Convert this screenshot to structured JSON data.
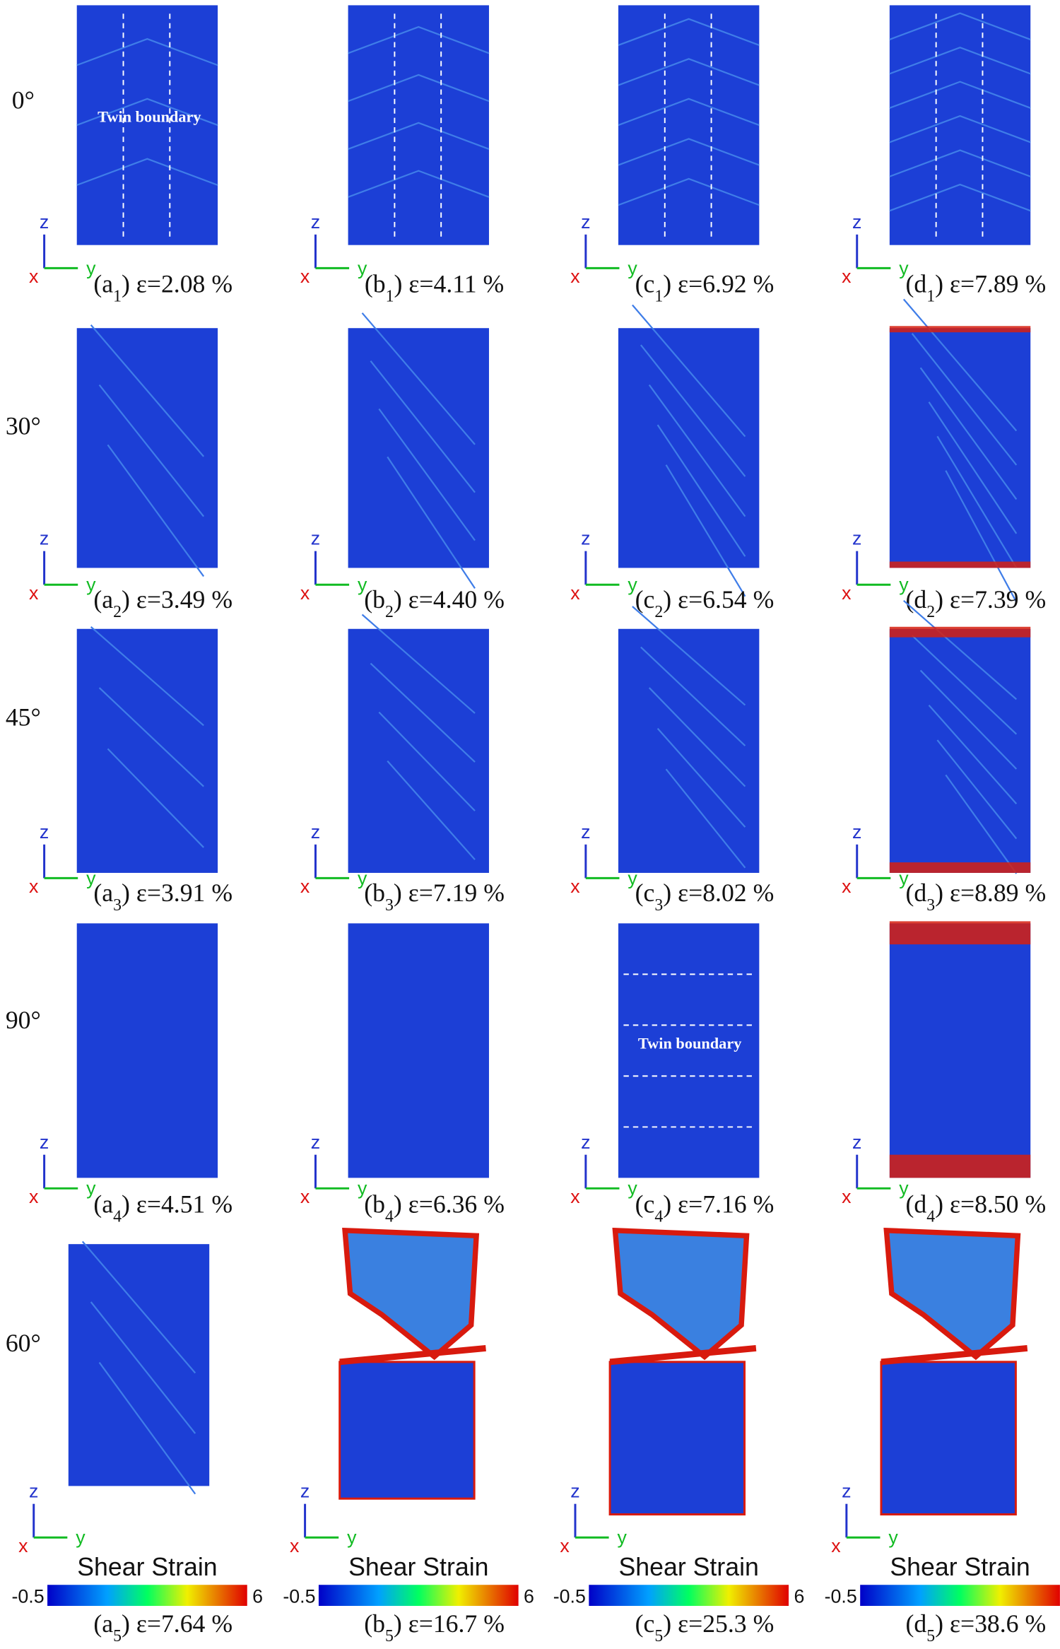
{
  "rows": [
    {
      "angle": "0°",
      "panels": [
        {
          "prefix": "(a",
          "sub": "1",
          "suffix": ") ε=2.08 %"
        },
        {
          "prefix": "(b",
          "sub": "1",
          "suffix": ") ε=4.11 %"
        },
        {
          "prefix": "(c",
          "sub": "1",
          "suffix": ") ε=6.92 %"
        },
        {
          "prefix": "(d",
          "sub": "1",
          "suffix": ") ε=7.89 %"
        }
      ]
    },
    {
      "angle": "30°",
      "panels": [
        {
          "prefix": "(a",
          "sub": "2",
          "suffix": ") ε=3.49 %"
        },
        {
          "prefix": "(b",
          "sub": "2",
          "suffix": ") ε=4.40 %"
        },
        {
          "prefix": "(c",
          "sub": "2",
          "suffix": ") ε=6.54 %"
        },
        {
          "prefix": "(d",
          "sub": "2",
          "suffix": ") ε=7.39 %"
        }
      ]
    },
    {
      "angle": "45°",
      "panels": [
        {
          "prefix": "(a",
          "sub": "3",
          "suffix": ") ε=3.91 %"
        },
        {
          "prefix": "(b",
          "sub": "3",
          "suffix": ") ε=7.19 %"
        },
        {
          "prefix": "(c",
          "sub": "3",
          "suffix": ") ε=8.02 %"
        },
        {
          "prefix": "(d",
          "sub": "3",
          "suffix": ") ε=8.89 %"
        }
      ]
    },
    {
      "angle": "90°",
      "panels": [
        {
          "prefix": "(a",
          "sub": "4",
          "suffix": ") ε=4.51 %"
        },
        {
          "prefix": "(b",
          "sub": "4",
          "suffix": ") ε=6.36 %"
        },
        {
          "prefix": "(c",
          "sub": "4",
          "suffix": ") ε=7.16 %"
        },
        {
          "prefix": "(d",
          "sub": "4",
          "suffix": ") ε=8.50 %"
        }
      ]
    },
    {
      "angle": "60°",
      "panels": [
        {
          "prefix": "(a",
          "sub": "5",
          "suffix": ") ε=7.64 %"
        },
        {
          "prefix": "(b",
          "sub": "5",
          "suffix": ") ε=16.7 %"
        },
        {
          "prefix": "(c",
          "sub": "5",
          "suffix": ") ε=25.3 %"
        },
        {
          "prefix": "(d",
          "sub": "5",
          "suffix": ") ε=38.6 %"
        }
      ]
    }
  ],
  "annotations": [
    "Twin boundary",
    "Twin boundary"
  ],
  "axes": {
    "z": "z",
    "y": "y",
    "x": "x"
  },
  "colorbar": {
    "title": "Shear Strain",
    "min": "-0.5",
    "max": "6"
  }
}
